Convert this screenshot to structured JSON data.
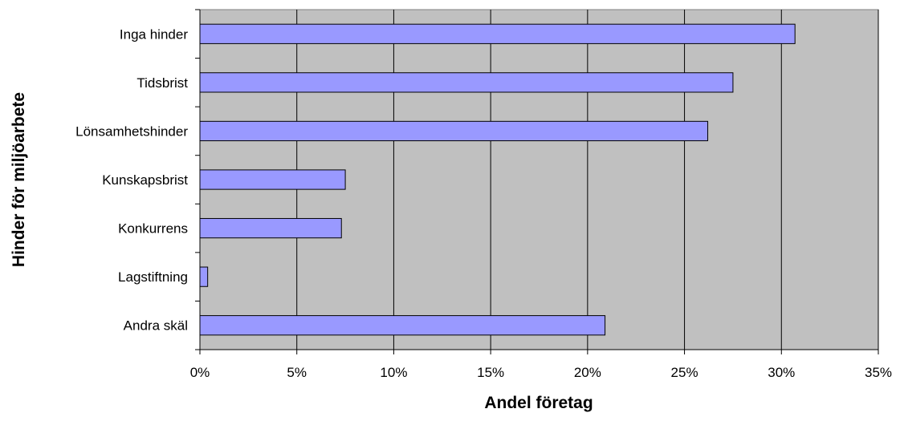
{
  "chart_data": {
    "type": "bar",
    "orientation": "horizontal",
    "categories": [
      "Inga hinder",
      "Tidsbrist",
      "Lönsamhetshinder",
      "Kunskapsbrist",
      "Konkurrens",
      "Lagstiftning",
      "Andra skäl"
    ],
    "values": [
      30.7,
      27.5,
      26.2,
      7.5,
      7.3,
      0.4,
      20.9
    ],
    "xlabel": "Andel företag",
    "ylabel": "Hinder för miljöarbete",
    "xlim": [
      0,
      35
    ],
    "xticks": [
      0,
      5,
      10,
      15,
      20,
      25,
      30,
      35
    ],
    "xtick_labels": [
      "0%",
      "5%",
      "10%",
      "15%",
      "20%",
      "25%",
      "30%",
      "35%"
    ],
    "grid": true,
    "legend": "none",
    "colors": {
      "bar_fill": "#9999ff",
      "bar_stroke": "#000000",
      "plot_background": "#c0c0c0",
      "gridline": "#000000"
    }
  }
}
